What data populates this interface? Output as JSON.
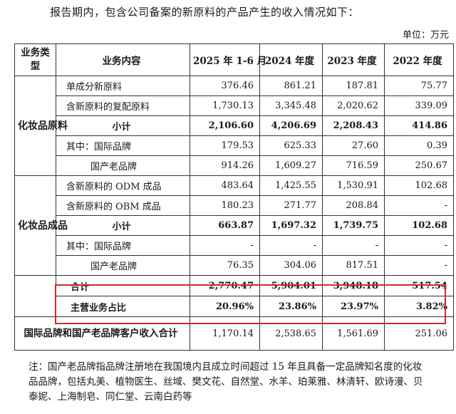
{
  "intro": "报告期内，包含公司备案的新原料的产品产生的收入情况如下：",
  "unit": "单位：万元",
  "table": {
    "headers": [
      "业务类型",
      "业务内容",
      "2025 年 1-6 月",
      "2024 年度",
      "2023 年度",
      "2022 年度"
    ],
    "cat_cosmetic_raw": "化妆品原料",
    "cat_cosmetic_product": "化妆品成品",
    "rows": [
      {
        "label": "单成分新原料",
        "v": [
          "376.46",
          "861.21",
          "187.81",
          "75.77"
        ]
      },
      {
        "label": "含新原料的复配原料",
        "v": [
          "1,730.13",
          "3,345.48",
          "2,020.62",
          "339.09"
        ]
      },
      {
        "label": "小计",
        "v": [
          "2,106.60",
          "4,206.69",
          "2,208.43",
          "414.86"
        ]
      },
      {
        "label": "其中：国际品牌",
        "v": [
          "179.53",
          "625.33",
          "27.60",
          "0.39"
        ]
      },
      {
        "label": "国产老品牌",
        "v": [
          "914.26",
          "1,609.27",
          "716.59",
          "250.67"
        ]
      },
      {
        "label": "含新原料的 ODM 成品",
        "v": [
          "483.64",
          "1,425.55",
          "1,530.91",
          "102.68"
        ]
      },
      {
        "label": "含新原料的 OBM 成品",
        "v": [
          "180.23",
          "271.77",
          "208.84",
          "-"
        ]
      },
      {
        "label": "小计",
        "v": [
          "663.87",
          "1,697.32",
          "1,739.75",
          "102.68"
        ]
      },
      {
        "label": "其中：国际品牌",
        "v": [
          "-",
          "-",
          "-",
          "-"
        ]
      },
      {
        "label": "国产老品牌",
        "v": [
          "76.35",
          "304.06",
          "817.51",
          "-"
        ]
      },
      {
        "label": "合计",
        "v": [
          "2,770.47",
          "5,904.01",
          "3,948.18",
          "517.54"
        ]
      },
      {
        "label": "主营业务占比",
        "v": [
          "20.96%",
          "23.86%",
          "23.97%",
          "3.82%"
        ]
      },
      {
        "label": "国际品牌和国产老品牌客户收入合计",
        "v": [
          "1,170.14",
          "2,538.65",
          "1,561.69",
          "251.06"
        ]
      }
    ]
  },
  "note": "注：国产老品牌指品牌注册地在我国境内且成立时间超过 15 年且具备一定品牌知名度的化妆品品牌，包括丸美、植物医生、丝域、樊文花、自然堂、水羊、珀莱雅、林清轩、欧诗漫、贝泰妮、上海制皂、同仁堂、云南白药等",
  "colors": {
    "highlight_box": "#d9262a",
    "border": "#333333"
  }
}
